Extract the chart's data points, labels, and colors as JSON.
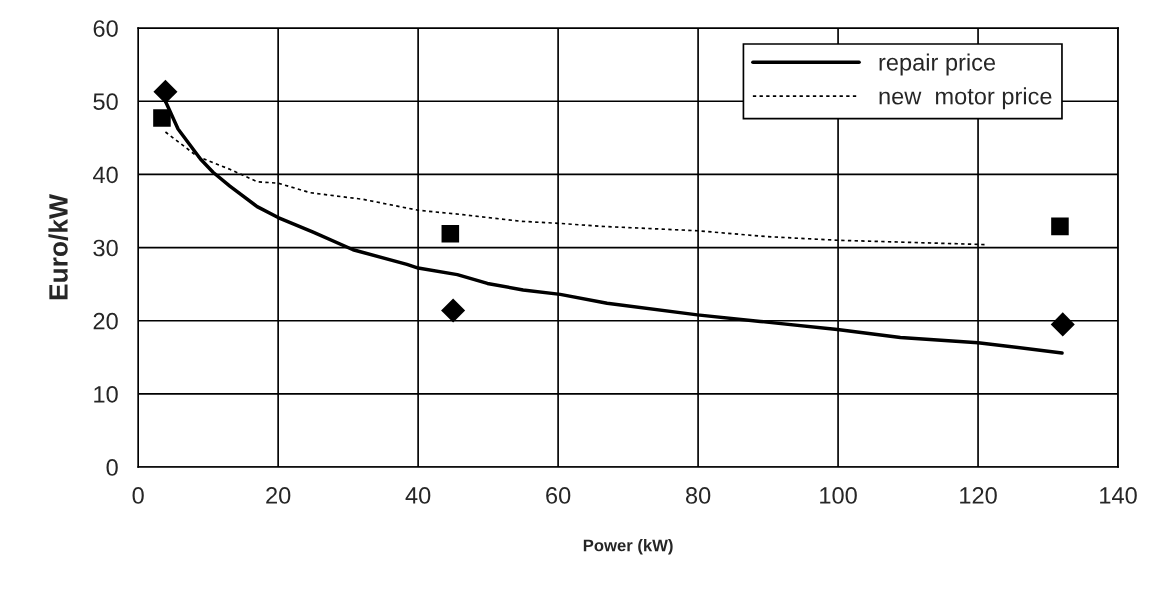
{
  "chart_data": {
    "type": "line",
    "xlabel": "Power (kW)",
    "ylabel": "Euro/kW",
    "xlim": [
      0,
      140
    ],
    "xticks": [
      0,
      20,
      40,
      60,
      80,
      100,
      120,
      140
    ],
    "ylim": [
      0,
      60
    ],
    "yticks": [
      0,
      10,
      20,
      30,
      40,
      50,
      60
    ],
    "grid": true,
    "legend": "top right",
    "series": [
      {
        "name": "repair price",
        "color": "#000000",
        "line_style": "solid",
        "x": [
          3.9,
          5.7,
          8.9,
          10.7,
          13.1,
          17,
          20,
          25,
          30.7,
          38.4,
          40,
          45.6,
          49.9,
          55,
          60.3,
          67,
          79.9,
          88.9,
          99.9,
          108.9,
          120,
          132
        ],
        "values": [
          50.0,
          46.2,
          42.1,
          40.3,
          38.4,
          35.6,
          34.1,
          32.1,
          29.7,
          27.7,
          27.2,
          26.3,
          25.1,
          24.2,
          23.6,
          22.4,
          20.8,
          19.9,
          18.8,
          17.7,
          17.0,
          15.6
        ]
      },
      {
        "name": "new  motor price",
        "color": "#000000",
        "line_style": "dotted",
        "x": [
          3.9,
          8.4,
          13.1,
          17,
          20,
          24.6,
          32.1,
          40,
          46.4,
          54.6,
          60.3,
          66.2,
          79.9,
          89.8,
          99.9,
          121.3
        ],
        "values": [
          45.8,
          42.5,
          40.7,
          39.0,
          38.8,
          37.5,
          36.6,
          35.1,
          34.5,
          33.6,
          33.3,
          32.9,
          32.3,
          31.5,
          31.0,
          30.4
        ]
      },
      {
        "type": "scatter",
        "color": "#000000",
        "marker": "diamond",
        "x": [
          3.9,
          45,
          132.1
        ],
        "values": [
          51.3,
          21.4,
          19.5
        ]
      },
      {
        "type": "scatter",
        "color": "#000000",
        "marker": "square",
        "x": [
          3.4,
          44.6,
          131.7
        ],
        "values": [
          47.7,
          31.9,
          32.9
        ]
      }
    ]
  }
}
